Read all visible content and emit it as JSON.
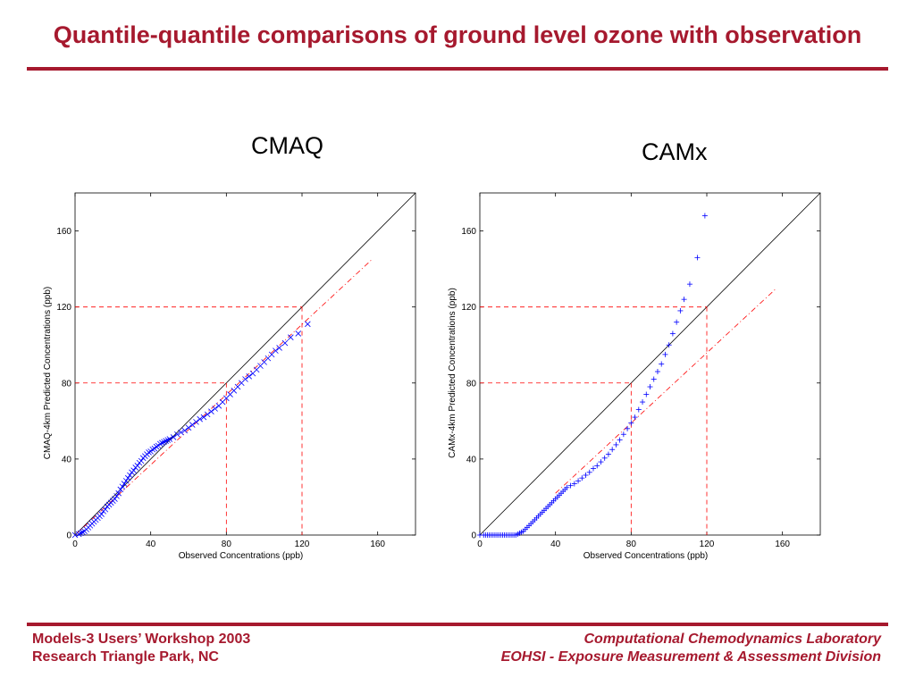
{
  "slide": {
    "title": "Quantile-quantile comparisons of ground level ozone with observation",
    "footer_left": [
      "Models-3 Users’ Workshop 2003",
      "Research Triangle Park, NC"
    ],
    "footer_right": [
      "Computational Chemodynamics Laboratory",
      "EOHSI - Exposure Measurement & Assessment Division"
    ],
    "accent_color": "#a6192e"
  },
  "chart_data": [
    {
      "type": "scatter",
      "title": "CMAQ",
      "xlabel": "Observed Concentrations (ppb)",
      "ylabel": "CMAQ-4km Predicted Concentrations (ppb)",
      "xlim": [
        0,
        180
      ],
      "ylim": [
        0,
        180
      ],
      "xticks": [
        0,
        40,
        80,
        120,
        160
      ],
      "yticks": [
        0,
        40,
        80,
        120,
        160
      ],
      "marker": "x",
      "marker_color": "#0000ff",
      "reference_lines": {
        "one_to_one": true,
        "dashed_threshold_values": [
          80,
          120
        ],
        "dashdot_fit": [
          [
            0,
            0
          ],
          [
            157,
            145
          ]
        ]
      },
      "points": [
        [
          0,
          0
        ],
        [
          2,
          0.5
        ],
        [
          3,
          1
        ],
        [
          4,
          1.5
        ],
        [
          5,
          2
        ],
        [
          6,
          3
        ],
        [
          7,
          4
        ],
        [
          8,
          5
        ],
        [
          9,
          6
        ],
        [
          10,
          7
        ],
        [
          11,
          8
        ],
        [
          12,
          9
        ],
        [
          13,
          10
        ],
        [
          14,
          11
        ],
        [
          15,
          12.5
        ],
        [
          16,
          13.5
        ],
        [
          17,
          15
        ],
        [
          18,
          16
        ],
        [
          19,
          17
        ],
        [
          20,
          18
        ],
        [
          21,
          19
        ],
        [
          22,
          20.5
        ],
        [
          23,
          22
        ],
        [
          24,
          24
        ],
        [
          25,
          25.5
        ],
        [
          26,
          27
        ],
        [
          27,
          28.5
        ],
        [
          28,
          30
        ],
        [
          29,
          31.5
        ],
        [
          30,
          33
        ],
        [
          31,
          34
        ],
        [
          32,
          35.5
        ],
        [
          33,
          36.5
        ],
        [
          34,
          38
        ],
        [
          35,
          39
        ],
        [
          36,
          40.5
        ],
        [
          37,
          41.5
        ],
        [
          38,
          42.5
        ],
        [
          39,
          43.5
        ],
        [
          40,
          44
        ],
        [
          41,
          45
        ],
        [
          42,
          45.5
        ],
        [
          43,
          46.5
        ],
        [
          44,
          47
        ],
        [
          45,
          48
        ],
        [
          46,
          48.5
        ],
        [
          47,
          49
        ],
        [
          48,
          49.5
        ],
        [
          49,
          50
        ],
        [
          50,
          50.5
        ],
        [
          52,
          51.5
        ],
        [
          54,
          53
        ],
        [
          56,
          54
        ],
        [
          58,
          55
        ],
        [
          60,
          56.5
        ],
        [
          62,
          58
        ],
        [
          64,
          59.5
        ],
        [
          66,
          61
        ],
        [
          68,
          62
        ],
        [
          70,
          63.5
        ],
        [
          72,
          65
        ],
        [
          74,
          66.5
        ],
        [
          76,
          68
        ],
        [
          78,
          70
        ],
        [
          80,
          72
        ],
        [
          82,
          74
        ],
        [
          84,
          76
        ],
        [
          86,
          78
        ],
        [
          88,
          80
        ],
        [
          90,
          82
        ],
        [
          92,
          83.5
        ],
        [
          94,
          85
        ],
        [
          96,
          87
        ],
        [
          98,
          89
        ],
        [
          100,
          91
        ],
        [
          102,
          93
        ],
        [
          104,
          95
        ],
        [
          106,
          97
        ],
        [
          108,
          98.5
        ],
        [
          111,
          101
        ],
        [
          114,
          104
        ],
        [
          118,
          106
        ],
        [
          123,
          111
        ]
      ]
    },
    {
      "type": "scatter",
      "title": "CAMx",
      "xlabel": "Observed Concentrations (ppb)",
      "ylabel": "CAMx-4km Predicted Concentrations (ppb)",
      "xlim": [
        0,
        180
      ],
      "ylim": [
        0,
        180
      ],
      "xticks": [
        0,
        40,
        80,
        120,
        160
      ],
      "yticks": [
        0,
        40,
        80,
        120,
        160
      ],
      "marker": "+",
      "marker_color": "#0000ff",
      "reference_lines": {
        "one_to_one": true,
        "dashed_threshold_values": [
          80,
          120
        ],
        "dashdot_fit": [
          [
            40,
            22
          ],
          [
            157,
            130
          ]
        ]
      },
      "points": [
        [
          0,
          0
        ],
        [
          2,
          0
        ],
        [
          3,
          0
        ],
        [
          4,
          0
        ],
        [
          5,
          0
        ],
        [
          6,
          0
        ],
        [
          7,
          0
        ],
        [
          8,
          0
        ],
        [
          9,
          0
        ],
        [
          10,
          0
        ],
        [
          11,
          0
        ],
        [
          12,
          0
        ],
        [
          13,
          0
        ],
        [
          14,
          0
        ],
        [
          15,
          0
        ],
        [
          16,
          0
        ],
        [
          17,
          0
        ],
        [
          18,
          0
        ],
        [
          19,
          0
        ],
        [
          20,
          0.5
        ],
        [
          21,
          1
        ],
        [
          22,
          1.5
        ],
        [
          23,
          2
        ],
        [
          24,
          3
        ],
        [
          25,
          4
        ],
        [
          26,
          5
        ],
        [
          27,
          6
        ],
        [
          28,
          7
        ],
        [
          29,
          8
        ],
        [
          30,
          9
        ],
        [
          31,
          10
        ],
        [
          32,
          11
        ],
        [
          33,
          12
        ],
        [
          34,
          13
        ],
        [
          35,
          14
        ],
        [
          36,
          15
        ],
        [
          37,
          16
        ],
        [
          38,
          17
        ],
        [
          39,
          18
        ],
        [
          40,
          19
        ],
        [
          41,
          20
        ],
        [
          42,
          21
        ],
        [
          43,
          22
        ],
        [
          44,
          23
        ],
        [
          45,
          24
        ],
        [
          46,
          25
        ],
        [
          48,
          26
        ],
        [
          50,
          27
        ],
        [
          52,
          28.5
        ],
        [
          54,
          30
        ],
        [
          56,
          31.5
        ],
        [
          58,
          33
        ],
        [
          60,
          35
        ],
        [
          62,
          36.5
        ],
        [
          64,
          38.5
        ],
        [
          66,
          40.5
        ],
        [
          68,
          42.5
        ],
        [
          70,
          45
        ],
        [
          72,
          47.5
        ],
        [
          74,
          50
        ],
        [
          76,
          53
        ],
        [
          78,
          56
        ],
        [
          80,
          59
        ],
        [
          82,
          62
        ],
        [
          84,
          66
        ],
        [
          86,
          70
        ],
        [
          88,
          74
        ],
        [
          90,
          78
        ],
        [
          92,
          82
        ],
        [
          94,
          86
        ],
        [
          96,
          90
        ],
        [
          98,
          95
        ],
        [
          100,
          100
        ],
        [
          102,
          106
        ],
        [
          104,
          112
        ],
        [
          106,
          118
        ],
        [
          108,
          124
        ],
        [
          111,
          132
        ],
        [
          115,
          146
        ],
        [
          119,
          168
        ]
      ]
    }
  ]
}
